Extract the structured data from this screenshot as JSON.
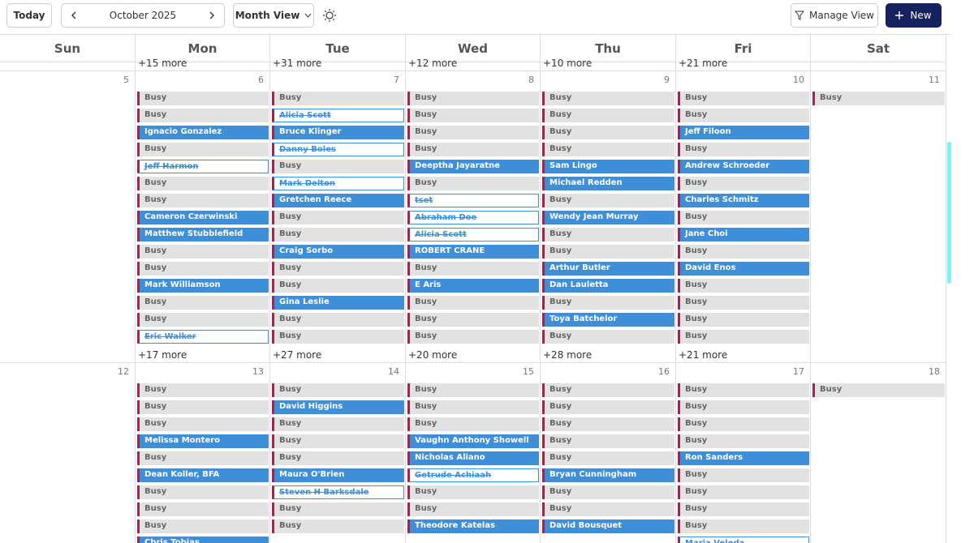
{
  "toolbar": {
    "today": "Today",
    "month": "October 2025",
    "view": "Month View",
    "manage": "Manage View",
    "new": "New"
  },
  "weekdays": [
    "Sun",
    "Mon",
    "Tue",
    "Wed",
    "Thu",
    "Fri",
    "Sat"
  ],
  "prev_more": [
    null,
    "+15 more",
    "+31 more",
    "+12 more",
    "+10 more",
    "+21 more",
    null
  ],
  "weeks": [
    {
      "days": [
        {
          "date": "5",
          "events": [],
          "more": null
        },
        {
          "date": "6",
          "events": [
            {
              "label": "Busy",
              "kind": "busy"
            },
            {
              "label": "Busy",
              "kind": "busy"
            },
            {
              "label": "Ignacio Gonzalez",
              "kind": "booked"
            },
            {
              "label": "Busy",
              "kind": "busy"
            },
            {
              "label": "Jeff Harmon",
              "kind": "cancelled"
            },
            {
              "label": "Busy",
              "kind": "busy"
            },
            {
              "label": "Busy",
              "kind": "busy"
            },
            {
              "label": "Cameron Czerwinski",
              "kind": "booked"
            },
            {
              "label": "Matthew Stubblefield",
              "kind": "booked"
            },
            {
              "label": "Busy",
              "kind": "busy"
            },
            {
              "label": "Busy",
              "kind": "busy"
            },
            {
              "label": "Mark Williamson",
              "kind": "booked"
            },
            {
              "label": "Busy",
              "kind": "busy"
            },
            {
              "label": "Busy",
              "kind": "busy"
            },
            {
              "label": "Eric Walker",
              "kind": "cancelled"
            }
          ],
          "more": "+17 more"
        },
        {
          "date": "7",
          "events": [
            {
              "label": "Busy",
              "kind": "busy"
            },
            {
              "label": "Alicia Scott",
              "kind": "cancelled"
            },
            {
              "label": "Bruce Klinger",
              "kind": "booked"
            },
            {
              "label": "Danny Boles",
              "kind": "cancelled"
            },
            {
              "label": "Busy",
              "kind": "busy"
            },
            {
              "label": "Mark Delton",
              "kind": "cancelled"
            },
            {
              "label": "Gretchen Reece",
              "kind": "booked"
            },
            {
              "label": "Busy",
              "kind": "busy"
            },
            {
              "label": "Busy",
              "kind": "busy"
            },
            {
              "label": "Craig Sorbo",
              "kind": "booked"
            },
            {
              "label": "Busy",
              "kind": "busy"
            },
            {
              "label": "Busy",
              "kind": "busy"
            },
            {
              "label": "Gina Leslie",
              "kind": "booked"
            },
            {
              "label": "Busy",
              "kind": "busy"
            },
            {
              "label": "Busy",
              "kind": "busy"
            }
          ],
          "more": "+27 more"
        },
        {
          "date": "8",
          "events": [
            {
              "label": "Busy",
              "kind": "busy"
            },
            {
              "label": "Busy",
              "kind": "busy"
            },
            {
              "label": "Busy",
              "kind": "busy"
            },
            {
              "label": "Busy",
              "kind": "busy"
            },
            {
              "label": "Deeptha Jayaratne",
              "kind": "booked"
            },
            {
              "label": "Busy",
              "kind": "busy"
            },
            {
              "label": "tset",
              "kind": "cancelled"
            },
            {
              "label": "Abraham Doe",
              "kind": "cancelled"
            },
            {
              "label": "Alicia Scott",
              "kind": "cancelled"
            },
            {
              "label": "ROBERT CRANE",
              "kind": "booked"
            },
            {
              "label": "Busy",
              "kind": "busy"
            },
            {
              "label": "E Aris",
              "kind": "booked"
            },
            {
              "label": "Busy",
              "kind": "busy"
            },
            {
              "label": "Busy",
              "kind": "busy"
            },
            {
              "label": "Busy",
              "kind": "busy"
            }
          ],
          "more": "+20 more"
        },
        {
          "date": "9",
          "events": [
            {
              "label": "Busy",
              "kind": "busy"
            },
            {
              "label": "Busy",
              "kind": "busy"
            },
            {
              "label": "Busy",
              "kind": "busy"
            },
            {
              "label": "Busy",
              "kind": "busy"
            },
            {
              "label": "Sam Lingo",
              "kind": "booked"
            },
            {
              "label": "Michael Redden",
              "kind": "booked"
            },
            {
              "label": "Busy",
              "kind": "busy"
            },
            {
              "label": "Wendy Jean Murray",
              "kind": "booked"
            },
            {
              "label": "Busy",
              "kind": "busy"
            },
            {
              "label": "Busy",
              "kind": "busy"
            },
            {
              "label": "Arthur Butler",
              "kind": "booked"
            },
            {
              "label": "Dan Lauletta",
              "kind": "booked"
            },
            {
              "label": "Busy",
              "kind": "busy"
            },
            {
              "label": "Toya Batchelor",
              "kind": "booked"
            },
            {
              "label": "Busy",
              "kind": "busy"
            }
          ],
          "more": "+28 more"
        },
        {
          "date": "10",
          "events": [
            {
              "label": "Busy",
              "kind": "busy"
            },
            {
              "label": "Busy",
              "kind": "busy"
            },
            {
              "label": "Jeff Filoon",
              "kind": "booked"
            },
            {
              "label": "Busy",
              "kind": "busy"
            },
            {
              "label": "Andrew Schroeder",
              "kind": "booked"
            },
            {
              "label": "Busy",
              "kind": "busy"
            },
            {
              "label": "Charles Schmitz",
              "kind": "booked"
            },
            {
              "label": "Busy",
              "kind": "busy"
            },
            {
              "label": "Jane Choi",
              "kind": "booked"
            },
            {
              "label": "Busy",
              "kind": "busy"
            },
            {
              "label": "David Enos",
              "kind": "booked"
            },
            {
              "label": "Busy",
              "kind": "busy"
            },
            {
              "label": "Busy",
              "kind": "busy"
            },
            {
              "label": "Busy",
              "kind": "busy"
            },
            {
              "label": "Busy",
              "kind": "busy"
            }
          ],
          "more": "+21 more"
        },
        {
          "date": "11",
          "events": [
            {
              "label": "Busy",
              "kind": "busy"
            }
          ],
          "more": null
        }
      ]
    },
    {
      "days": [
        {
          "date": "12",
          "events": [],
          "more": null
        },
        {
          "date": "13",
          "events": [
            {
              "label": "Busy",
              "kind": "busy"
            },
            {
              "label": "Busy",
              "kind": "busy"
            },
            {
              "label": "Busy",
              "kind": "busy"
            },
            {
              "label": "Melissa Montero",
              "kind": "booked"
            },
            {
              "label": "Busy",
              "kind": "busy"
            },
            {
              "label": "Dean Koller, BFA",
              "kind": "booked"
            },
            {
              "label": "Busy",
              "kind": "busy"
            },
            {
              "label": "Busy",
              "kind": "busy"
            },
            {
              "label": "Busy",
              "kind": "busy"
            },
            {
              "label": "Chris Tobias",
              "kind": "booked"
            }
          ],
          "more": null
        },
        {
          "date": "14",
          "events": [
            {
              "label": "Busy",
              "kind": "busy"
            },
            {
              "label": "David Higgins",
              "kind": "booked"
            },
            {
              "label": "Busy",
              "kind": "busy"
            },
            {
              "label": "Busy",
              "kind": "busy"
            },
            {
              "label": "Busy",
              "kind": "busy"
            },
            {
              "label": "Maura O'Brien",
              "kind": "booked"
            },
            {
              "label": "Steven H Barksdale",
              "kind": "cancelled"
            },
            {
              "label": "Busy",
              "kind": "busy"
            },
            {
              "label": "Busy",
              "kind": "busy"
            }
          ],
          "more": null
        },
        {
          "date": "15",
          "events": [
            {
              "label": "Busy",
              "kind": "busy"
            },
            {
              "label": "Busy",
              "kind": "busy"
            },
            {
              "label": "Busy",
              "kind": "busy"
            },
            {
              "label": "Vaughn Anthony Showell",
              "kind": "booked"
            },
            {
              "label": "Nicholas Aliano",
              "kind": "booked"
            },
            {
              "label": "Getrude Achiaah",
              "kind": "cancelled"
            },
            {
              "label": "Busy",
              "kind": "busy"
            },
            {
              "label": "Busy",
              "kind": "busy"
            },
            {
              "label": "Theodore Katelas",
              "kind": "booked"
            }
          ],
          "more": null
        },
        {
          "date": "16",
          "events": [
            {
              "label": "Busy",
              "kind": "busy"
            },
            {
              "label": "Busy",
              "kind": "busy"
            },
            {
              "label": "Busy",
              "kind": "busy"
            },
            {
              "label": "Busy",
              "kind": "busy"
            },
            {
              "label": "Busy",
              "kind": "busy"
            },
            {
              "label": "Bryan Cunningham",
              "kind": "booked"
            },
            {
              "label": "Busy",
              "kind": "busy"
            },
            {
              "label": "Busy",
              "kind": "busy"
            },
            {
              "label": "David Bousquet",
              "kind": "booked"
            }
          ],
          "more": null
        },
        {
          "date": "17",
          "events": [
            {
              "label": "Busy",
              "kind": "busy"
            },
            {
              "label": "Busy",
              "kind": "busy"
            },
            {
              "label": "Busy",
              "kind": "busy"
            },
            {
              "label": "Busy",
              "kind": "busy"
            },
            {
              "label": "Ron Sanders",
              "kind": "booked"
            },
            {
              "label": "Busy",
              "kind": "busy"
            },
            {
              "label": "Busy",
              "kind": "busy"
            },
            {
              "label": "Busy",
              "kind": "busy"
            },
            {
              "label": "Busy",
              "kind": "busy"
            },
            {
              "label": "Maria Veleda",
              "kind": "cancelled"
            }
          ],
          "more": null
        },
        {
          "date": "18",
          "events": [
            {
              "label": "Busy",
              "kind": "busy"
            }
          ],
          "more": null
        }
      ]
    }
  ]
}
